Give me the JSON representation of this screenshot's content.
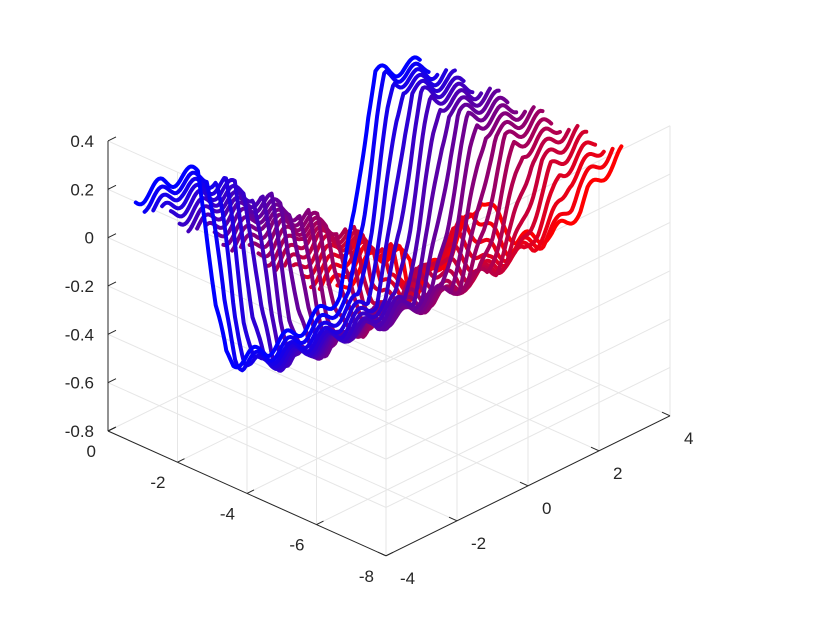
{
  "chart_data": {
    "type": "surface3d",
    "description_style": "mesh of lines, colored red to blue",
    "title": "",
    "xlabel": "",
    "ylabel": "",
    "zlabel": "",
    "x_ticks": [
      "-4",
      "-2",
      "0",
      "2",
      "4"
    ],
    "y_ticks": [
      "0",
      "-2",
      "-4",
      "-6",
      "-8"
    ],
    "z_ticks": [
      "0.4",
      "0.2",
      "0",
      "-0.2",
      "-0.4",
      "-0.6",
      "-0.8"
    ],
    "xlim": [
      -4,
      4
    ],
    "ylim": [
      -8,
      0
    ],
    "zlim": [
      -0.8,
      0.4
    ],
    "grid": true,
    "color_start": "#ff0000",
    "color_end": "#0000ff",
    "curve_count": 24,
    "profile": {
      "x": [
        -4,
        -3,
        -2,
        -1.8,
        -1.5,
        -1.2,
        -1,
        0,
        1,
        2,
        2.4,
        2.8,
        3,
        4
      ],
      "z_front": [
        0.2,
        0.22,
        0.2,
        0.0,
        -0.4,
        -0.62,
        -0.66,
        -0.68,
        -0.66,
        -0.6,
        -0.3,
        0.1,
        0.24,
        0.2
      ],
      "z_back": [
        0.2,
        0.28,
        0.2,
        0.05,
        0.1,
        0.12,
        0.1,
        0.3,
        0.05,
        0.0,
        0.02,
        0.05,
        0.1,
        0.2
      ]
    }
  }
}
